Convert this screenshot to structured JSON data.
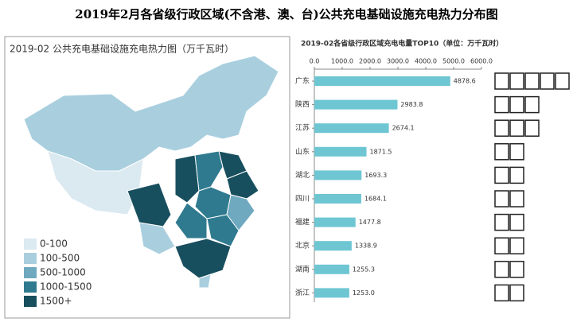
{
  "chart_data": [
    {
      "type": "map",
      "title": "2019年2月各省级行政区域(不含港、澳、台)公共充电基础设施充电热力分布图",
      "subtitle": "2019-02 公共充电基础设施充电热力图（万千瓦时）",
      "legend": {
        "labels": [
          "0-100",
          "100-500",
          "500-1000",
          "1000-1500",
          "1500+"
        ],
        "colors": [
          "#dbe9f0",
          "#a9cfdf",
          "#6fa9bf",
          "#2f7a8f",
          "#184f5e"
        ]
      }
    },
    {
      "type": "hbar",
      "title": "2019-02各省级行政区域充电电量TOP10（单位：万千瓦时）",
      "categories": [
        "广东",
        "陕西",
        "江苏",
        "山东",
        "湖北",
        "四川",
        "福建",
        "北京",
        "湖南",
        "浙江"
      ],
      "values": [
        4878.6,
        2983.8,
        2674.1,
        1871.5,
        1693.3,
        1684.1,
        1477.8,
        1338.9,
        1255.3,
        1253.0
      ],
      "value_labels": [
        "4878.6",
        "2983.8",
        "2674.1",
        "1871.5",
        "1693.3",
        "1684.1",
        "1477.8",
        "1338.9",
        "1255.3",
        "1253.0"
      ],
      "color": "#6ec6d3",
      "xlim": [
        0,
        6000
      ],
      "xticks": [
        {
          "value": 0,
          "label": "0.0"
        },
        {
          "value": 1000,
          "label": "1000.0"
        },
        {
          "value": 2000,
          "label": "2000.0"
        },
        {
          "value": 3000,
          "label": "3000.0"
        },
        {
          "value": 4000,
          "label": "4000.0"
        },
        {
          "value": 5000,
          "label": "5000.0"
        },
        {
          "value": 6000,
          "label": "6000.0"
        }
      ]
    }
  ]
}
